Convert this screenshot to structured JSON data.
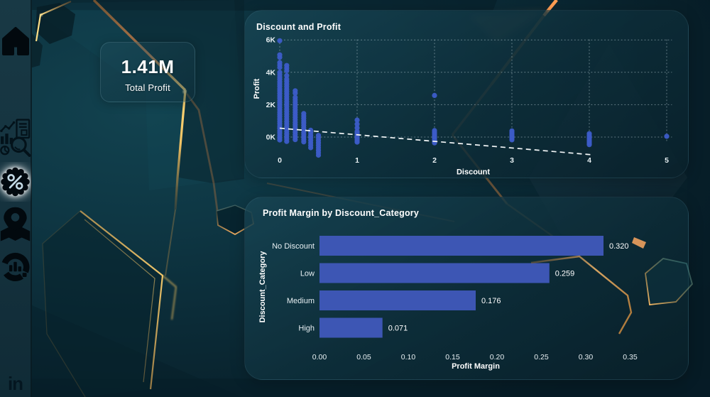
{
  "kpi_card": {
    "value": "1.41M",
    "label": "Total Profit"
  },
  "sidebar": {
    "items": [
      {
        "id": "home",
        "icon": "home-icon",
        "selected": false
      },
      {
        "id": "analysis",
        "icon": "data-analysis-icon",
        "selected": false
      },
      {
        "id": "discount",
        "icon": "percent-badge-icon",
        "selected": true
      },
      {
        "id": "region",
        "icon": "location-map-icon",
        "selected": false
      },
      {
        "id": "report",
        "icon": "donut-chart-icon",
        "selected": false
      },
      {
        "id": "linkedin",
        "icon": "linkedin-icon",
        "selected": false,
        "text": "in"
      }
    ]
  },
  "colors": {
    "background_teal": "#0c2b36",
    "sidebar_teal": "#16353f",
    "panel_fill": "#0e323e",
    "point_blue": "#3c5cc8",
    "bar_blue": "#3d56b4",
    "accent_gold": "#f5c96e",
    "accent_orange": "#f0914b",
    "text_white": "#ffffff",
    "selected_glow": "#ffffff"
  },
  "chart_data": [
    {
      "type": "scatter",
      "title": "Discount and Profit",
      "xlabel": "Discount",
      "ylabel": "Profit",
      "x_ticks": [
        0,
        1,
        2,
        3,
        4,
        5
      ],
      "y_ticks": [
        {
          "v": 0,
          "label": "0K"
        },
        {
          "v": 2000,
          "label": "2K"
        },
        {
          "v": 4000,
          "label": "4K"
        },
        {
          "v": 6000,
          "label": "6K"
        }
      ],
      "xlim": [
        0,
        5
      ],
      "ylim": [
        -1500,
        6300
      ],
      "grid": "dotted",
      "points": [
        [
          0.0,
          5950
        ],
        [
          0.0,
          5080
        ],
        [
          0.0,
          4920
        ],
        [
          0.0,
          4600
        ],
        [
          0.0,
          4450
        ],
        [
          0.0,
          4300
        ],
        [
          0.0,
          4000
        ],
        [
          0.0,
          3860
        ],
        [
          0.0,
          3700
        ],
        [
          0.0,
          3560
        ],
        [
          0.0,
          3410
        ],
        [
          0.0,
          3270
        ],
        [
          0.0,
          3130
        ],
        [
          0.0,
          2980
        ],
        [
          0.0,
          2840
        ],
        [
          0.0,
          2690
        ],
        [
          0.0,
          2550
        ],
        [
          0.0,
          2410
        ],
        [
          0.0,
          2260
        ],
        [
          0.0,
          2120
        ],
        [
          0.0,
          1980
        ],
        [
          0.0,
          1830
        ],
        [
          0.0,
          1690
        ],
        [
          0.0,
          1540
        ],
        [
          0.0,
          1400
        ],
        [
          0.0,
          1260
        ],
        [
          0.0,
          1110
        ],
        [
          0.0,
          970
        ],
        [
          0.0,
          830
        ],
        [
          0.0,
          680
        ],
        [
          0.0,
          540
        ],
        [
          0.0,
          390
        ],
        [
          0.0,
          250
        ],
        [
          0.0,
          110
        ],
        [
          0.0,
          -40
        ],
        [
          0.0,
          -180
        ],
        [
          0.09,
          4420
        ],
        [
          0.09,
          4260
        ],
        [
          0.09,
          4100
        ],
        [
          0.09,
          3800
        ],
        [
          0.09,
          3580
        ],
        [
          0.09,
          3430
        ],
        [
          0.09,
          3270
        ],
        [
          0.09,
          3120
        ],
        [
          0.09,
          2960
        ],
        [
          0.09,
          2810
        ],
        [
          0.09,
          2660
        ],
        [
          0.09,
          2500
        ],
        [
          0.09,
          2350
        ],
        [
          0.09,
          2190
        ],
        [
          0.09,
          2040
        ],
        [
          0.09,
          1890
        ],
        [
          0.09,
          1730
        ],
        [
          0.09,
          1580
        ],
        [
          0.09,
          1420
        ],
        [
          0.09,
          1270
        ],
        [
          0.09,
          1120
        ],
        [
          0.09,
          960
        ],
        [
          0.09,
          810
        ],
        [
          0.09,
          650
        ],
        [
          0.09,
          500
        ],
        [
          0.09,
          350
        ],
        [
          0.09,
          190
        ],
        [
          0.09,
          40
        ],
        [
          0.09,
          -120
        ],
        [
          0.09,
          -270
        ],
        [
          0.2,
          2860
        ],
        [
          0.2,
          2710
        ],
        [
          0.2,
          2450
        ],
        [
          0.2,
          2300
        ],
        [
          0.2,
          2140
        ],
        [
          0.2,
          1990
        ],
        [
          0.2,
          1840
        ],
        [
          0.2,
          1680
        ],
        [
          0.2,
          1530
        ],
        [
          0.2,
          1380
        ],
        [
          0.2,
          1220
        ],
        [
          0.2,
          1070
        ],
        [
          0.2,
          910
        ],
        [
          0.2,
          760
        ],
        [
          0.2,
          610
        ],
        [
          0.2,
          450
        ],
        [
          0.2,
          300
        ],
        [
          0.2,
          150
        ],
        [
          0.2,
          -10
        ],
        [
          0.2,
          -160
        ],
        [
          0.31,
          1450
        ],
        [
          0.31,
          1300
        ],
        [
          0.31,
          1160
        ],
        [
          0.31,
          1010
        ],
        [
          0.31,
          870
        ],
        [
          0.31,
          720
        ],
        [
          0.31,
          570
        ],
        [
          0.31,
          430
        ],
        [
          0.31,
          280
        ],
        [
          0.31,
          140
        ],
        [
          0.31,
          -10
        ],
        [
          0.31,
          -150
        ],
        [
          0.31,
          -300
        ],
        [
          0.4,
          420
        ],
        [
          0.4,
          270
        ],
        [
          0.4,
          110
        ],
        [
          0.4,
          -40
        ],
        [
          0.4,
          -200
        ],
        [
          0.4,
          -350
        ],
        [
          0.4,
          -510
        ],
        [
          0.4,
          -660
        ],
        [
          0.5,
          100
        ],
        [
          0.5,
          -50
        ],
        [
          0.5,
          -210
        ],
        [
          0.5,
          -360
        ],
        [
          0.5,
          -510
        ],
        [
          0.5,
          -660
        ],
        [
          0.5,
          -820
        ],
        [
          0.5,
          -970
        ],
        [
          0.5,
          -1120
        ],
        [
          1.0,
          1050
        ],
        [
          1.0,
          800
        ],
        [
          1.0,
          570
        ],
        [
          1.0,
          340
        ],
        [
          1.0,
          250
        ],
        [
          1.0,
          150
        ],
        [
          1.0,
          60
        ],
        [
          1.0,
          -30
        ],
        [
          1.0,
          -120
        ],
        [
          1.0,
          -220
        ],
        [
          1.0,
          -310
        ],
        [
          2.0,
          2570
        ],
        [
          2.0,
          400
        ],
        [
          2.0,
          290
        ],
        [
          2.0,
          180
        ],
        [
          2.0,
          70
        ],
        [
          2.0,
          -30
        ],
        [
          2.0,
          -140
        ],
        [
          2.0,
          -250
        ],
        [
          2.0,
          -360
        ],
        [
          3.0,
          380
        ],
        [
          3.0,
          290
        ],
        [
          3.0,
          200
        ],
        [
          3.0,
          100
        ],
        [
          3.0,
          10
        ],
        [
          3.0,
          -80
        ],
        [
          3.0,
          -170
        ],
        [
          4.0,
          210
        ],
        [
          4.0,
          110
        ],
        [
          4.0,
          20
        ],
        [
          4.0,
          -80
        ],
        [
          4.0,
          -180
        ],
        [
          4.0,
          -280
        ],
        [
          4.0,
          -370
        ],
        [
          4.0,
          -470
        ],
        [
          5.0,
          50
        ]
      ],
      "trend_line": {
        "x1": 0.0,
        "y1": 550,
        "x2": 4.05,
        "y2": -1100,
        "style": "dashed"
      },
      "point_color": "#3c5cc8"
    },
    {
      "type": "bar",
      "orientation": "horizontal",
      "title": "Profit Margin by Discount_Category",
      "xlabel": "Profit Margin",
      "ylabel": "Discount_Category",
      "categories": [
        "No Discount",
        "Low",
        "Medium",
        "High"
      ],
      "values": [
        0.32,
        0.259,
        0.176,
        0.071
      ],
      "data_labels": [
        "0.320",
        "0.259",
        "0.176",
        "0.071"
      ],
      "x_ticks": [
        "0.00",
        "0.05",
        "0.10",
        "0.15",
        "0.20",
        "0.25",
        "0.30",
        "0.35"
      ],
      "xlim": [
        0,
        0.35
      ],
      "grid": "off",
      "bar_color": "#3d56b4"
    }
  ]
}
